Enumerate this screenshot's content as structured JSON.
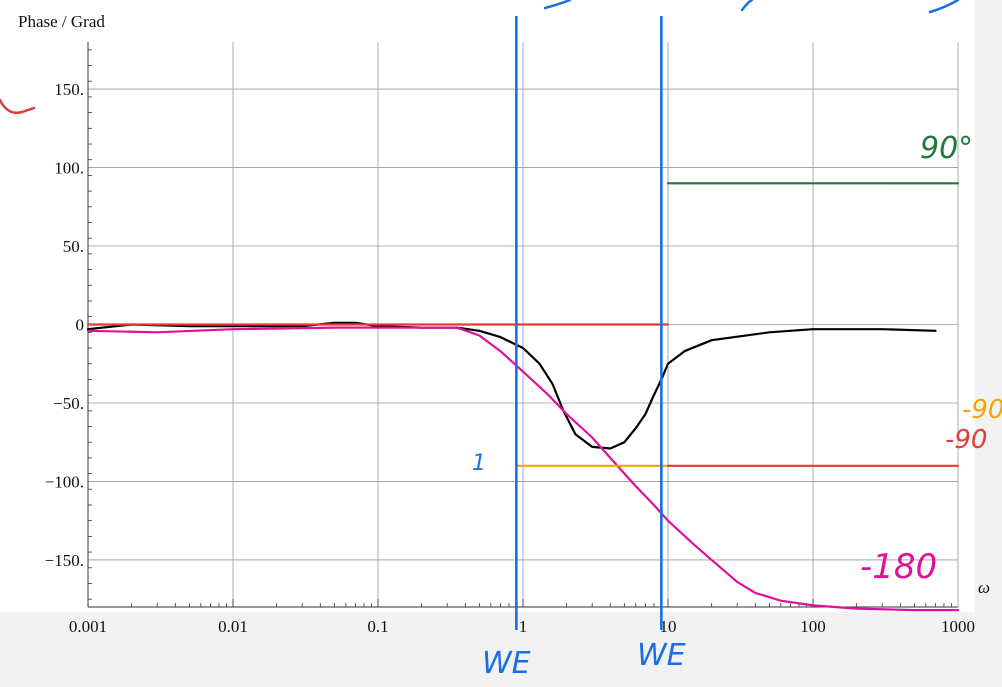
{
  "chart_data": {
    "type": "line",
    "title": "",
    "ylabel": "Phase / Grad",
    "xlabel": "ω",
    "x_scale": "log",
    "xlim": [
      0.001,
      1000
    ],
    "ylim": [
      -180,
      180
    ],
    "x_ticks": [
      {
        "value": 0.001,
        "label": "0.001"
      },
      {
        "value": 0.01,
        "label": "0.01"
      },
      {
        "value": 0.1,
        "label": "0.1"
      },
      {
        "value": 1,
        "label": "1"
      },
      {
        "value": 10,
        "label": "10"
      },
      {
        "value": 100,
        "label": "100"
      },
      {
        "value": 1000,
        "label": "1000"
      }
    ],
    "y_ticks": [
      {
        "value": 150,
        "label": "150."
      },
      {
        "value": 100,
        "label": "100."
      },
      {
        "value": 50,
        "label": "50."
      },
      {
        "value": 0,
        "label": "0"
      },
      {
        "value": -50,
        "label": "−50."
      },
      {
        "value": -100,
        "label": "−100."
      },
      {
        "value": -150,
        "label": "−150."
      }
    ],
    "grid": true,
    "series": [
      {
        "color": "#000000",
        "x": [
          0.001,
          0.002,
          0.005,
          0.01,
          0.03,
          0.05,
          0.07,
          0.1,
          0.2,
          0.35,
          0.5,
          0.7,
          1,
          1.3,
          1.6,
          1.9,
          2.3,
          3,
          4,
          5,
          6,
          7,
          8,
          9,
          10,
          13,
          20,
          50,
          100,
          300,
          700
        ],
        "y": [
          -3,
          0,
          -1,
          -1,
          -1,
          1,
          1,
          -1,
          -2,
          -2,
          -4,
          -8,
          -15,
          -25,
          -38,
          -55,
          -70,
          -78,
          -79,
          -75,
          -66,
          -57,
          -45,
          -35,
          -25,
          -17,
          -10,
          -5,
          -3,
          -3,
          -4
        ]
      },
      {
        "color": "#e0109a",
        "x": [
          0.001,
          0.003,
          0.01,
          0.05,
          0.1,
          0.35,
          0.5,
          0.7,
          1,
          1.5,
          2,
          3,
          4,
          5,
          6,
          8,
          10,
          15,
          20,
          30,
          40,
          60,
          100,
          200,
          500,
          1000
        ],
        "y": [
          -4,
          -5,
          -3,
          -2,
          -2,
          -2,
          -7,
          -17,
          -30,
          -45,
          -57,
          -72,
          -85,
          -95,
          -103,
          -115,
          -125,
          -140,
          -150,
          -164,
          -171,
          -176,
          -179,
          -181,
          -182,
          -182
        ]
      },
      {
        "color": "#e03a3a",
        "x": [
          0.001,
          10
        ],
        "y": [
          0,
          0
        ]
      },
      {
        "color": "#f0a500",
        "x": [
          0.9,
          10
        ],
        "y": [
          -90,
          -90
        ]
      },
      {
        "color": "#e03a3a",
        "x": [
          10,
          1000
        ],
        "y": [
          -90,
          -90
        ]
      },
      {
        "color": "#1d7a3a",
        "x": [
          10,
          1000
        ],
        "y": [
          90,
          90
        ]
      }
    ],
    "annotations": {
      "vlines": [
        {
          "x": 0.9,
          "label": "WE",
          "color": "#1a6fe0"
        },
        {
          "x": 9,
          "label": "WE",
          "color": "#1a6fe0"
        }
      ],
      "labels": [
        {
          "text": "90°",
          "color": "#1d7a3a"
        },
        {
          "text": "-180",
          "color": "#e0109a"
        },
        {
          "text": "-90",
          "color": "#f0a500"
        },
        {
          "text": "-90",
          "color": "#e03a3a"
        },
        {
          "text": "1",
          "color": "#1a6fe0"
        }
      ]
    }
  }
}
